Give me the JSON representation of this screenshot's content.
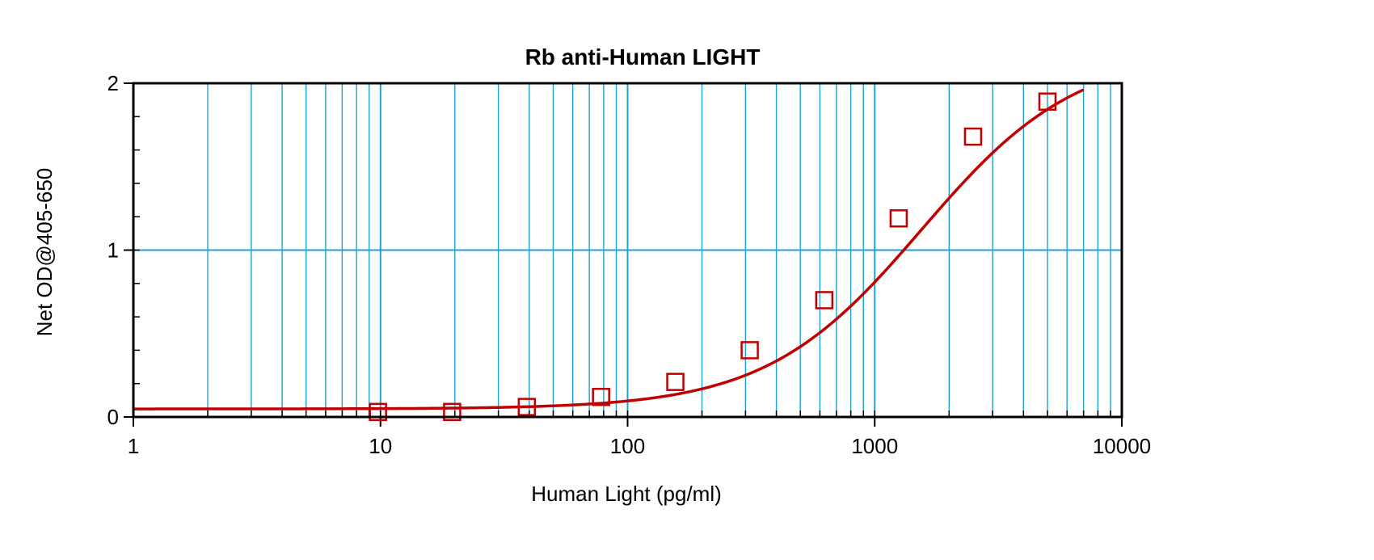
{
  "chart_data": {
    "type": "scatter",
    "title": "Rb anti-Human LIGHT",
    "xlabel": "Human Light (pg/ml)",
    "ylabel": "Net OD@405-650",
    "xscale": "log",
    "xlim": [
      1,
      10000
    ],
    "ylim": [
      0,
      2
    ],
    "grid": true,
    "x_ticks": [
      {
        "value": 1,
        "label": "1"
      },
      {
        "value": 10,
        "label": "10"
      },
      {
        "value": 100,
        "label": "100"
      },
      {
        "value": 1000,
        "label": "1000"
      },
      {
        "value": 10000,
        "label": "10000"
      }
    ],
    "y_ticks": [
      {
        "value": 0,
        "label": "0"
      },
      {
        "value": 1,
        "label": "1"
      },
      {
        "value": 2,
        "label": "2"
      }
    ],
    "series": [
      {
        "marker": "square",
        "color": "#c00000",
        "points": [
          {
            "x": 9.77,
            "y": 0.03
          },
          {
            "x": 19.5,
            "y": 0.03
          },
          {
            "x": 39.1,
            "y": 0.06
          },
          {
            "x": 78.1,
            "y": 0.12
          },
          {
            "x": 156,
            "y": 0.21
          },
          {
            "x": 312,
            "y": 0.4
          },
          {
            "x": 625,
            "y": 0.7
          },
          {
            "x": 1250,
            "y": 1.19
          },
          {
            "x": 2500,
            "y": 1.68
          },
          {
            "x": 5000,
            "y": 1.89
          }
        ]
      }
    ],
    "fit_curve": {
      "type": "4PL",
      "color": "#c00000",
      "bottom": 0.048,
      "top": 2.2,
      "ec50": 1550,
      "hill": 1.38,
      "x_range": [
        1,
        7000
      ]
    },
    "colors": {
      "grid": "#1fa3d2",
      "frame": "#000000",
      "series": "#c00000"
    }
  }
}
